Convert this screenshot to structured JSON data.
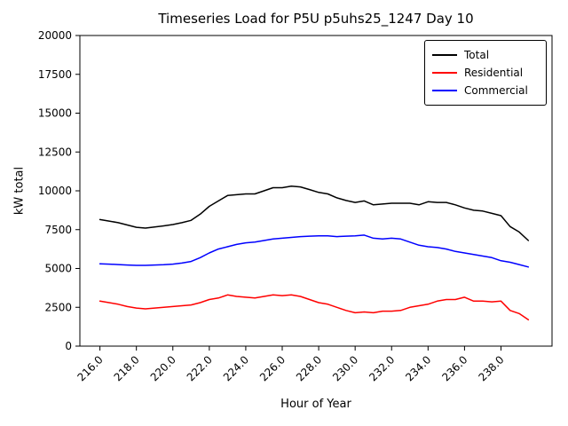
{
  "chart_data": {
    "type": "line",
    "title": "Timeseries Load for P5U p5uhs25_1247  Day 10",
    "xlabel": "Hour of Year",
    "ylabel": "kW total",
    "xlim": [
      214.9,
      240.8
    ],
    "ylim": [
      0,
      20000
    ],
    "grid": false,
    "legend_position": "upper right",
    "x_ticks": [
      216,
      218,
      220,
      222,
      224,
      226,
      228,
      230,
      232,
      234,
      236,
      238
    ],
    "x_tick_labels": [
      "216.0",
      "218.0",
      "220.0",
      "222.0",
      "224.0",
      "226.0",
      "228.0",
      "230.0",
      "232.0",
      "234.0",
      "236.0",
      "238.0"
    ],
    "y_ticks": [
      0,
      2500,
      5000,
      7500,
      10000,
      12500,
      15000,
      17500,
      20000
    ],
    "y_tick_labels": [
      "0",
      "2500",
      "5000",
      "7500",
      "10000",
      "12500",
      "15000",
      "17500",
      "20000"
    ],
    "x": [
      216.0,
      216.5,
      217.0,
      217.5,
      218.0,
      218.5,
      219.0,
      219.5,
      220.0,
      220.5,
      221.0,
      221.5,
      222.0,
      222.5,
      223.0,
      223.5,
      224.0,
      224.5,
      225.0,
      225.5,
      226.0,
      226.5,
      227.0,
      227.5,
      228.0,
      228.5,
      229.0,
      229.5,
      230.0,
      230.5,
      231.0,
      231.5,
      232.0,
      232.5,
      233.0,
      233.5,
      234.0,
      234.5,
      235.0,
      235.5,
      236.0,
      236.5,
      237.0,
      237.5,
      238.0,
      238.5,
      239.0,
      239.5
    ],
    "series": [
      {
        "name": "Total",
        "color": "#000000",
        "values": [
          8150,
          8050,
          7950,
          7800,
          7650,
          7600,
          7670,
          7740,
          7830,
          7950,
          8100,
          8500,
          9000,
          9350,
          9700,
          9750,
          9800,
          9800,
          10000,
          10200,
          10200,
          10300,
          10250,
          10080,
          9900,
          9800,
          9550,
          9380,
          9250,
          9350,
          9100,
          9150,
          9200,
          9200,
          9200,
          9100,
          9300,
          9250,
          9250,
          9100,
          8900,
          8750,
          8700,
          8550,
          8400,
          7700,
          7350,
          6800
        ]
      },
      {
        "name": "Residential",
        "color": "#ff0000",
        "values": [
          2900,
          2800,
          2700,
          2550,
          2450,
          2400,
          2450,
          2500,
          2550,
          2600,
          2650,
          2800,
          3000,
          3100,
          3300,
          3200,
          3150,
          3100,
          3200,
          3300,
          3250,
          3300,
          3200,
          3000,
          2800,
          2700,
          2500,
          2300,
          2150,
          2200,
          2150,
          2250,
          2250,
          2300,
          2500,
          2600,
          2700,
          2900,
          3000,
          3000,
          3150,
          2900,
          2900,
          2850,
          2900,
          2300,
          2100,
          1700
        ]
      },
      {
        "name": "Commercial",
        "color": "#0000ff",
        "values": [
          5300,
          5280,
          5250,
          5220,
          5200,
          5200,
          5220,
          5240,
          5280,
          5350,
          5450,
          5700,
          6000,
          6250,
          6400,
          6550,
          6650,
          6700,
          6800,
          6900,
          6950,
          7000,
          7050,
          7080,
          7100,
          7100,
          7050,
          7080,
          7100,
          7150,
          6950,
          6900,
          6950,
          6900,
          6700,
          6500,
          6400,
          6350,
          6250,
          6100,
          6000,
          5900,
          5800,
          5700,
          5500,
          5400,
          5250,
          5100
        ]
      }
    ]
  }
}
